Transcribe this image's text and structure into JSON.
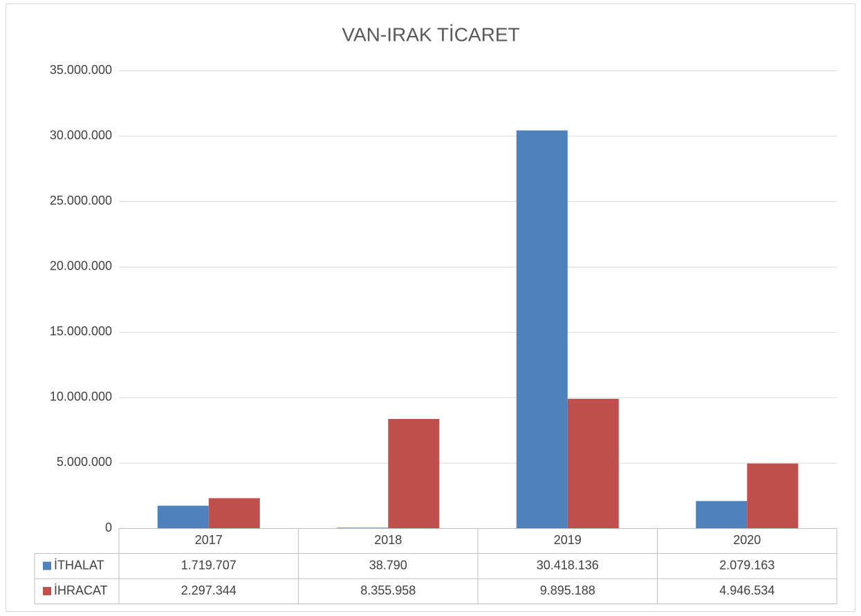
{
  "chart_data": {
    "type": "bar",
    "title": "VAN-IRAK TİCARET",
    "categories": [
      "2017",
      "2018",
      "2019",
      "2020"
    ],
    "series": [
      {
        "name": "İTHALAT",
        "color": "#4f81bd",
        "values": [
          1719707,
          38790,
          30418136,
          2079163
        ],
        "value_labels": [
          "1.719.707",
          "38.790",
          "30.418.136",
          "2.079.163"
        ]
      },
      {
        "name": "İHRACAT",
        "color": "#c0504d",
        "values": [
          2297344,
          8355958,
          9895188,
          4946534
        ],
        "value_labels": [
          "2.297.344",
          "8.355.958",
          "9.895.188",
          "4.946.534"
        ]
      }
    ],
    "ylim": [
      0,
      35000000
    ],
    "yticks": [
      0,
      {
        "value": 5000000,
        "label": "5.000.000"
      },
      {
        "value": 10000000,
        "label": "10.000.000"
      },
      {
        "value": 15000000,
        "label": "15.000.000"
      },
      {
        "value": 20000000,
        "label": "20.000.000"
      },
      {
        "value": 25000000,
        "label": "25.000.000"
      },
      {
        "value": 30000000,
        "label": "30.000.000"
      },
      {
        "value": 35000000,
        "label": "35.000.000"
      }
    ],
    "grid": true
  }
}
